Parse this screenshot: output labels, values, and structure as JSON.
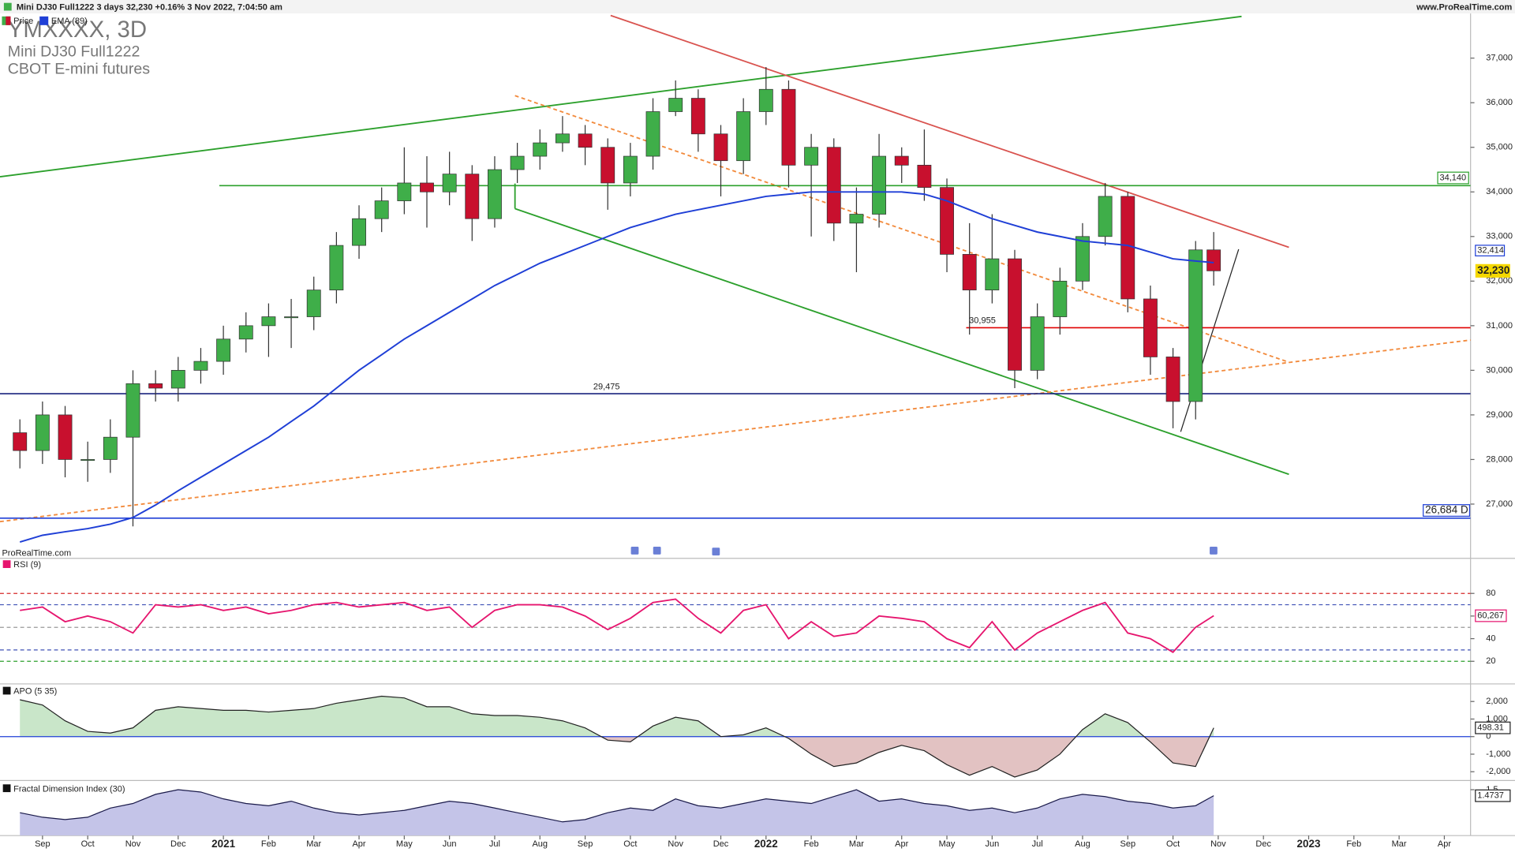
{
  "chart_data": [
    {
      "type": "candlestick",
      "header": "Mini DJ30 Full1222 3 days 32,230 +0.16% 3 Nov 2022, 7:04:50 am",
      "site": "www.ProRealTime.com",
      "title": "YMXXXX, 3D",
      "subtitle": "Mini DJ30 Full1222",
      "exchange": "CBOT E-mini futures",
      "watermark": "ProRealTime.com",
      "name": "Price",
      "up_color": "#3fae49",
      "down_color": "#c8102e",
      "x": [
        -0.5,
        0,
        0.5,
        1,
        1.5,
        2,
        2.5,
        3,
        3.5,
        4,
        4.5,
        5,
        5.5,
        6,
        6.5,
        7,
        7.5,
        8,
        8.5,
        9,
        9.5,
        10,
        10.5,
        11,
        11.5,
        12,
        12.5,
        13,
        13.5,
        14,
        14.5,
        15,
        15.5,
        16,
        16.5,
        17,
        17.5,
        18,
        18.5,
        19,
        19.5,
        20,
        20.5,
        21,
        21.5,
        22,
        22.5,
        23,
        23.5,
        24,
        24.5,
        25,
        25.5,
        25.9
      ],
      "open": [
        28600,
        28200,
        29000,
        28000,
        28000,
        28500,
        29700,
        29600,
        30000,
        30200,
        30700,
        31000,
        31200,
        31200,
        31800,
        32800,
        33400,
        33800,
        34200,
        34000,
        34400,
        33400,
        34500,
        34800,
        35100,
        35300,
        35000,
        34200,
        34800,
        35800,
        36100,
        35300,
        34700,
        35800,
        36300,
        34600,
        35000,
        33300,
        33500,
        34800,
        34600,
        34100,
        32600,
        31800,
        32500,
        30000,
        31200,
        32000,
        33000,
        33900,
        31600,
        30300,
        29300,
        32700
      ],
      "high": [
        28900,
        29300,
        29200,
        28400,
        28900,
        30000,
        30000,
        30300,
        30500,
        31000,
        31300,
        31500,
        31600,
        32100,
        33100,
        33700,
        34100,
        35000,
        34800,
        34900,
        34600,
        34800,
        35100,
        35400,
        35700,
        35500,
        35200,
        35100,
        36100,
        36500,
        36300,
        35500,
        36100,
        36800,
        36500,
        35300,
        35200,
        34100,
        35300,
        35000,
        35400,
        34300,
        33300,
        33500,
        32700,
        31500,
        32300,
        33300,
        34200,
        34000,
        31900,
        30500,
        32900,
        33100
      ],
      "low": [
        27800,
        27900,
        27600,
        27500,
        27700,
        26500,
        29300,
        29300,
        29700,
        29900,
        30400,
        30300,
        30500,
        30900,
        31500,
        32500,
        33100,
        33500,
        33200,
        33700,
        32900,
        33200,
        34200,
        34500,
        34900,
        34600,
        33600,
        33900,
        34500,
        35700,
        34900,
        33900,
        34400,
        35500,
        34100,
        33000,
        32900,
        32200,
        33200,
        34200,
        33800,
        32200,
        30800,
        31500,
        29600,
        29800,
        30800,
        31800,
        32800,
        31300,
        29900,
        28700,
        28900,
        31900
      ],
      "close": [
        28200,
        29000,
        28000,
        28000,
        28500,
        29700,
        29600,
        30000,
        30200,
        30700,
        31000,
        31200,
        31200,
        31800,
        32800,
        33400,
        33800,
        34200,
        34000,
        34400,
        33400,
        34500,
        34800,
        35100,
        35300,
        35000,
        34200,
        34800,
        35800,
        36100,
        35300,
        34700,
        35800,
        36300,
        34600,
        35000,
        33300,
        33500,
        34800,
        34600,
        34100,
        32600,
        31800,
        32500,
        30000,
        31200,
        32000,
        33000,
        33900,
        31600,
        30300,
        29300,
        32700,
        32230
      ],
      "last_close_label": "32,230",
      "series": [
        {
          "name": "EMA (89)",
          "color": "#1f3fd6",
          "last_value_label": "32,414",
          "values": [
            26150,
            26300,
            26380,
            26450,
            26550,
            26700,
            26980,
            27300,
            27600,
            27900,
            28200,
            28500,
            28850,
            29200,
            29600,
            30000,
            30350,
            30700,
            31000,
            31300,
            31600,
            31900,
            32150,
            32400,
            32600,
            32800,
            33000,
            33200,
            33350,
            33500,
            33600,
            33700,
            33800,
            33900,
            33950,
            34000,
            34000,
            34000,
            34000,
            34000,
            33950,
            33800,
            33600,
            33400,
            33250,
            33100,
            33000,
            32900,
            32850,
            32800,
            32650,
            32500,
            32450,
            32414
          ]
        }
      ],
      "levels": [
        {
          "value": 34140,
          "label": "34,140",
          "color": "#2ca02c"
        },
        {
          "value": 30955,
          "label": "30,955",
          "color": "#e00000"
        },
        {
          "value": 29475,
          "label": "29,475",
          "color": "#1a237e"
        },
        {
          "value": 26684,
          "label": "26,684 D",
          "color": "#1f3fd6"
        }
      ],
      "xlim": [
        -0.94,
        31.58
      ],
      "ylim": [
        26000,
        38000
      ],
      "yticks": [
        {
          "value": 27000,
          "label": "27,000"
        },
        {
          "value": 28000,
          "label": "28,000"
        },
        {
          "value": 29000,
          "label": "29,000"
        },
        {
          "value": 30000,
          "label": "30,000"
        },
        {
          "value": 31000,
          "label": "31,000"
        },
        {
          "value": 32000,
          "label": "32,000"
        },
        {
          "value": 33000,
          "label": "33,000"
        },
        {
          "value": 34000,
          "label": "34,000"
        },
        {
          "value": 35000,
          "label": "35,000"
        },
        {
          "value": 36000,
          "label": "36,000"
        },
        {
          "value": 37000,
          "label": "37,000"
        }
      ]
    },
    {
      "type": "line",
      "title": "RSI (9)",
      "color": "#e6156e",
      "last_value_label": "60,267",
      "x": [
        -0.5,
        0,
        0.5,
        1,
        1.5,
        2,
        2.5,
        3,
        3.5,
        4,
        4.5,
        5,
        5.5,
        6,
        6.5,
        7,
        7.5,
        8,
        8.5,
        9,
        9.5,
        10,
        10.5,
        11,
        11.5,
        12,
        12.5,
        13,
        13.5,
        14,
        14.5,
        15,
        15.5,
        16,
        16.5,
        17,
        17.5,
        18,
        18.5,
        19,
        19.5,
        20,
        20.5,
        21,
        21.5,
        22,
        22.5,
        23,
        23.5,
        24,
        24.5,
        25,
        25.5,
        25.9
      ],
      "values": [
        65,
        68,
        55,
        60,
        55,
        45,
        70,
        68,
        70,
        65,
        68,
        62,
        65,
        70,
        72,
        68,
        70,
        72,
        65,
        68,
        50,
        65,
        70,
        70,
        68,
        60,
        48,
        58,
        72,
        75,
        58,
        45,
        65,
        70,
        40,
        55,
        42,
        45,
        60,
        58,
        55,
        40,
        32,
        55,
        30,
        45,
        55,
        65,
        72,
        45,
        40,
        28,
        50,
        60.267
      ],
      "levels": [
        {
          "value": 80,
          "color": "#d62728"
        },
        {
          "value": 70,
          "color": "#3f51b5"
        },
        {
          "value": 50,
          "color": "#999999"
        },
        {
          "value": 30,
          "color": "#3f51b5"
        },
        {
          "value": 20,
          "color": "#2ca02c"
        }
      ],
      "xlim": [
        -0.94,
        31.58
      ],
      "ylim": [
        0,
        111
      ],
      "yticks": [
        20,
        40,
        60,
        80
      ]
    },
    {
      "type": "area",
      "title": "APO (5 35)",
      "color": "#222222",
      "up_fill": "#c9e6c9",
      "down_fill": "#e2c2c2",
      "last_value_label": "498.31",
      "x": [
        -0.5,
        0,
        0.5,
        1,
        1.5,
        2,
        2.5,
        3,
        3.5,
        4,
        4.5,
        5,
        5.5,
        6,
        6.5,
        7,
        7.5,
        8,
        8.5,
        9,
        9.5,
        10,
        10.5,
        11,
        11.5,
        12,
        12.5,
        13,
        13.5,
        14,
        14.5,
        15,
        15.5,
        16,
        16.5,
        17,
        17.5,
        18,
        18.5,
        19,
        19.5,
        20,
        20.5,
        21,
        21.5,
        22,
        22.5,
        23,
        23.5,
        24,
        24.5,
        25,
        25.5,
        25.9
      ],
      "values": [
        2100,
        1800,
        900,
        300,
        200,
        500,
        1500,
        1700,
        1600,
        1500,
        1500,
        1400,
        1500,
        1600,
        1900,
        2100,
        2300,
        2200,
        1700,
        1700,
        1300,
        1200,
        1200,
        1100,
        900,
        500,
        -200,
        -300,
        600,
        1100,
        900,
        0,
        100,
        500,
        -100,
        -1000,
        -1700,
        -1500,
        -900,
        -500,
        -800,
        -1600,
        -2200,
        -1700,
        -2300,
        -1900,
        -1000,
        400,
        1300,
        800,
        -300,
        -1500,
        -1700,
        498.31
      ],
      "baseline": 0,
      "xlim": [
        -0.94,
        31.58
      ],
      "ylim": [
        -2500,
        3000
      ],
      "yticks": [
        {
          "value": -2000,
          "label": "-2,000"
        },
        {
          "value": -1000,
          "label": "-1,000"
        },
        0,
        {
          "value": 1000,
          "label": "1,000"
        },
        {
          "value": 2000,
          "label": "2,000"
        }
      ]
    },
    {
      "type": "area",
      "title": "Fractal Dimension Index (30)",
      "color": "#1a1a4a",
      "up_fill": "#c4c4e8",
      "down_fill": "#c4c4e8",
      "last_value_label": "1.4737",
      "x": [
        -0.5,
        0,
        0.5,
        1,
        1.5,
        2,
        2.5,
        3,
        3.5,
        4,
        4.5,
        5,
        5.5,
        6,
        6.5,
        7,
        7.5,
        8,
        8.5,
        9,
        9.5,
        10,
        10.5,
        11,
        11.5,
        12,
        12.5,
        13,
        13.5,
        14,
        14.5,
        15,
        15.5,
        16,
        16.5,
        17,
        17.5,
        18,
        18.5,
        19,
        19.5,
        20,
        20.5,
        21,
        21.5,
        22,
        22.5,
        23,
        23.5,
        24,
        24.5,
        25,
        25.5,
        25.9
      ],
      "values": [
        1.4,
        1.38,
        1.37,
        1.38,
        1.42,
        1.44,
        1.48,
        1.5,
        1.49,
        1.46,
        1.44,
        1.43,
        1.45,
        1.42,
        1.4,
        1.39,
        1.4,
        1.41,
        1.43,
        1.45,
        1.44,
        1.42,
        1.4,
        1.38,
        1.36,
        1.37,
        1.4,
        1.42,
        1.41,
        1.46,
        1.43,
        1.42,
        1.44,
        1.46,
        1.45,
        1.44,
        1.47,
        1.5,
        1.45,
        1.46,
        1.44,
        1.43,
        1.41,
        1.42,
        1.4,
        1.42,
        1.46,
        1.48,
        1.47,
        1.45,
        1.44,
        1.42,
        1.43,
        1.4737
      ],
      "xlim": [
        -0.94,
        31.58
      ],
      "ylim": [
        1.3,
        1.54
      ],
      "yticks": [
        1.5
      ],
      "xticks": [
        {
          "value": 0,
          "label": "Sep"
        },
        {
          "value": 1,
          "label": "Oct"
        },
        {
          "value": 2,
          "label": "Nov"
        },
        {
          "value": 3,
          "label": "Dec"
        },
        {
          "value": 4,
          "label": "2021"
        },
        {
          "value": 5,
          "label": "Feb"
        },
        {
          "value": 6,
          "label": "Mar"
        },
        {
          "value": 7,
          "label": "Apr"
        },
        {
          "value": 8,
          "label": "May"
        },
        {
          "value": 9,
          "label": "Jun"
        },
        {
          "value": 10,
          "label": "Jul"
        },
        {
          "value": 11,
          "label": "Aug"
        },
        {
          "value": 12,
          "label": "Sep"
        },
        {
          "value": 13,
          "label": "Oct"
        },
        {
          "value": 14,
          "label": "Nov"
        },
        {
          "value": 15,
          "label": "Dec"
        },
        {
          "value": 16,
          "label": "2022"
        },
        {
          "value": 17,
          "label": "Feb"
        },
        {
          "value": 18,
          "label": "Mar"
        },
        {
          "value": 19,
          "label": "Apr"
        },
        {
          "value": 20,
          "label": "May"
        },
        {
          "value": 21,
          "label": "Jun"
        },
        {
          "value": 22,
          "label": "Jul"
        },
        {
          "value": 23,
          "label": "Aug"
        },
        {
          "value": 24,
          "label": "Sep"
        },
        {
          "value": 25,
          "label": "Oct"
        },
        {
          "value": 26,
          "label": "Nov"
        },
        {
          "value": 27,
          "label": "Dec"
        },
        {
          "value": 28,
          "label": "2023"
        },
        {
          "value": 29,
          "label": "Feb"
        },
        {
          "value": 30,
          "label": "Mar"
        },
        {
          "value": 31,
          "label": "Apr"
        }
      ]
    }
  ]
}
